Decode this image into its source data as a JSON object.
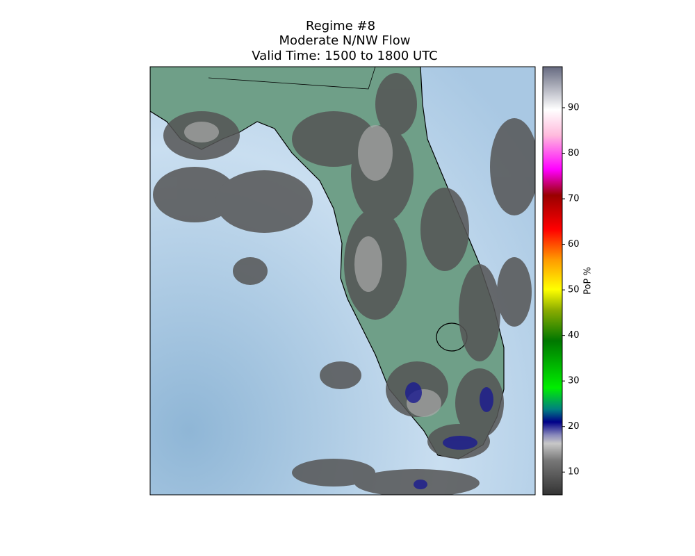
{
  "title": [
    "Regime #8",
    "Moderate N/NW Flow",
    "Valid Time: 1500 to 1800 UTC"
  ],
  "colorbar": {
    "label": "PoP %",
    "range": [
      5,
      99
    ],
    "ticks": [
      10,
      20,
      30,
      40,
      50,
      60,
      70,
      80,
      90
    ]
  }
}
